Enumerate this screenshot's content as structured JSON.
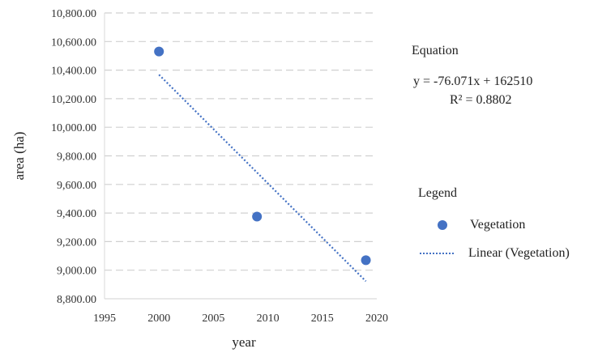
{
  "chart_data": {
    "type": "scatter",
    "xlabel": "year",
    "ylabel": "area (ha)",
    "xlim": [
      1995,
      2020
    ],
    "ylim": [
      8800,
      10800
    ],
    "x_ticks": [
      1995,
      2000,
      2005,
      2010,
      2015,
      2020
    ],
    "y_ticks": [
      8800,
      9000,
      9200,
      9400,
      9600,
      9800,
      10000,
      10200,
      10400,
      10600,
      10800
    ],
    "y_tick_labels": [
      "8,800.00",
      "9,000.00",
      "9,200.00",
      "9,400.00",
      "9,600.00",
      "9,800.00",
      "10,000.00",
      "10,200.00",
      "10,400.00",
      "10,600.00",
      "10,800.00"
    ],
    "grid": "horizontal dashed",
    "series": [
      {
        "name": "Vegetation",
        "x": [
          2000,
          2009,
          2019
        ],
        "y": [
          10530,
          9375,
          9070
        ],
        "color": "#4472C4"
      }
    ],
    "trendline": {
      "name": "Linear (Vegetation)",
      "slope": -76.071,
      "intercept": 162510,
      "x_range": [
        2000,
        2019
      ],
      "style": "dotted",
      "color": "#4472C4"
    },
    "equation_panel": {
      "title": "Equation",
      "equation": "y = -76.071x + 162510",
      "r_squared": "R² = 0.8802"
    },
    "legend": {
      "title": "Legend",
      "placement": "right",
      "entries": [
        "Vegetation",
        "Linear (Vegetation)"
      ]
    }
  }
}
